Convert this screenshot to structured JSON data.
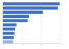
{
  "chart_data": {
    "type": "bar",
    "orientation": "horizontal",
    "categories": [
      null,
      null,
      null,
      null,
      null,
      null,
      null,
      null,
      null,
      null
    ],
    "values": [
      29.5,
      28.5,
      20.7,
      13.6,
      12.9,
      7.1,
      6.4,
      6.1,
      5.7,
      5.4
    ],
    "colors": [
      "#3f6fc4",
      "#3f6fc4",
      "#3f6fc4",
      "#3f6fc4",
      "#3f6fc4",
      "#3f6fc4",
      "#3f6fc4",
      "#3f6fc4",
      "#3f6fc4",
      "#94b4e4"
    ],
    "xlim": [
      0,
      30
    ],
    "xticks": [
      0,
      10,
      20,
      30
    ],
    "grid": true,
    "tick_labels": false
  }
}
